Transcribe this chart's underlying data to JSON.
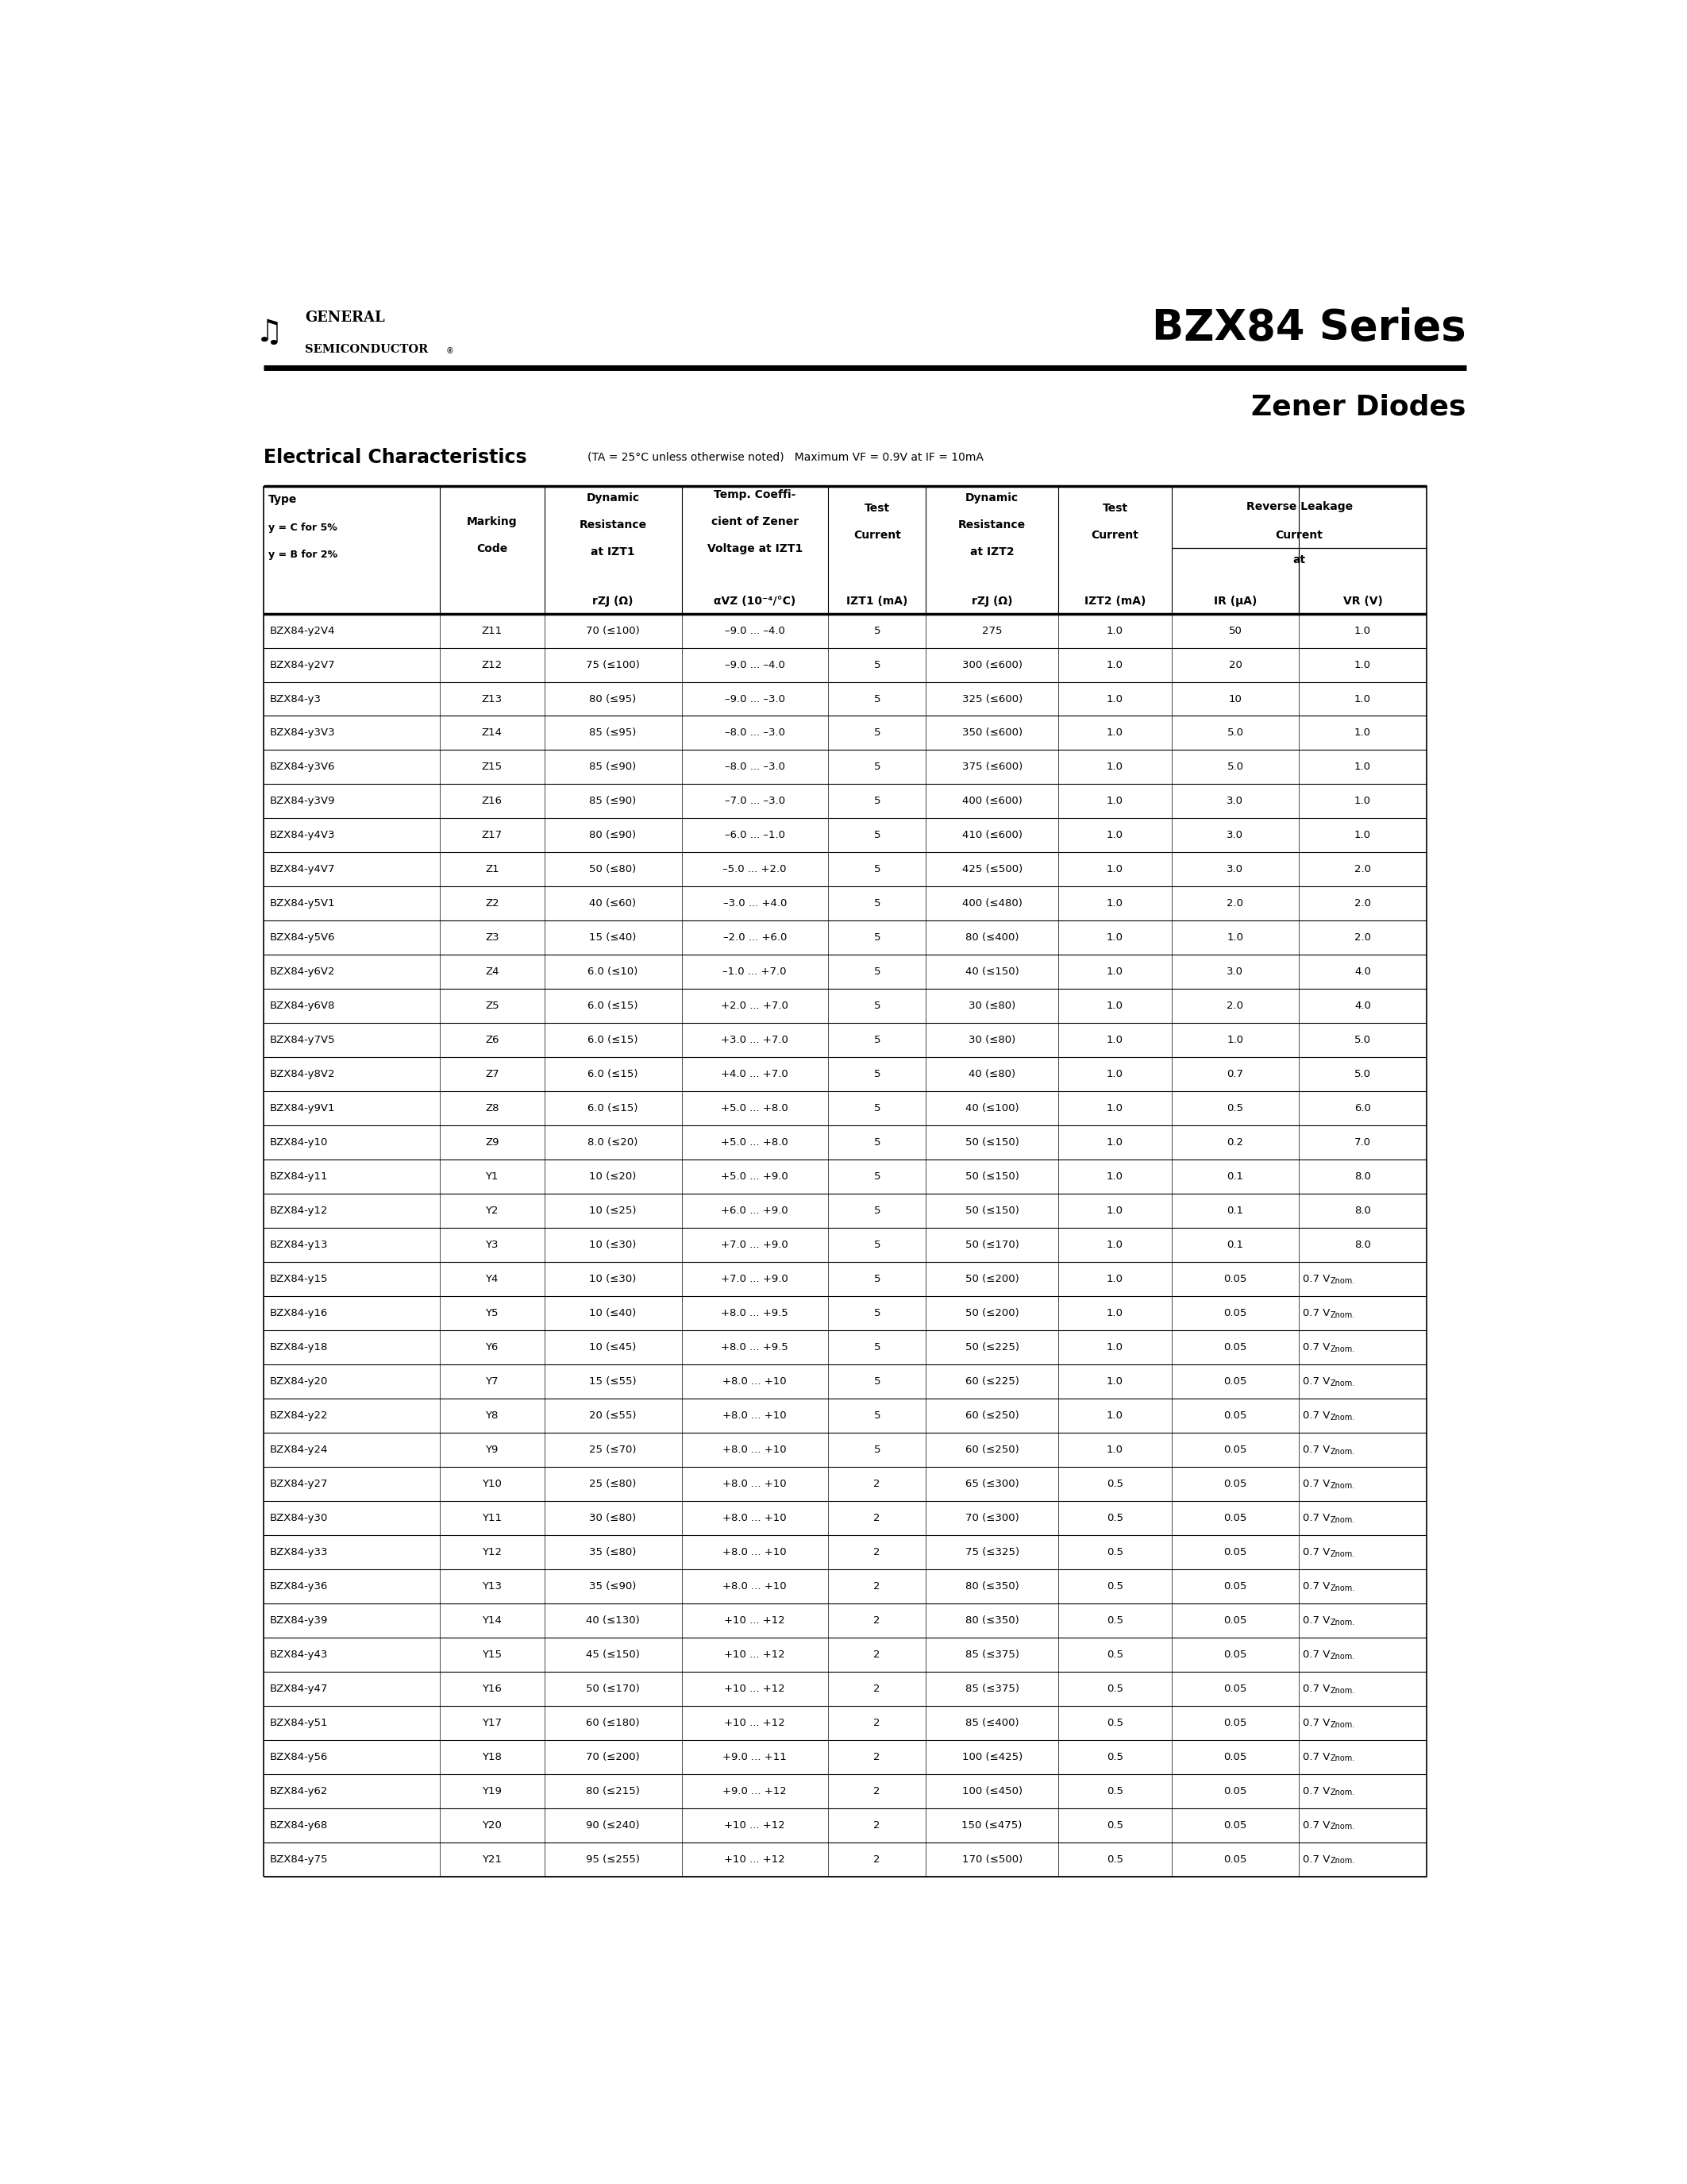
{
  "title1": "BZX84 Series",
  "title2": "Zener Diodes",
  "section_title": "Electrical Characteristics",
  "section_note": "(TA = 25°C unless otherwise noted)   Maximum VF = 0.9V at IF = 10mA",
  "rows": [
    [
      "BZX84-y2V4",
      "Z11",
      "70 (≤100)",
      "–9.0 ... –4.0",
      "5",
      "275",
      "1.0",
      "50",
      "1.0"
    ],
    [
      "BZX84-y2V7",
      "Z12",
      "75 (≤100)",
      "–9.0 ... –4.0",
      "5",
      "300 (≤600)",
      "1.0",
      "20",
      "1.0"
    ],
    [
      "BZX84-y3",
      "Z13",
      "80 (≤95)",
      "–9.0 ... –3.0",
      "5",
      "325 (≤600)",
      "1.0",
      "10",
      "1.0"
    ],
    [
      "BZX84-y3V3",
      "Z14",
      "85 (≤95)",
      "–8.0 ... –3.0",
      "5",
      "350 (≤600)",
      "1.0",
      "5.0",
      "1.0"
    ],
    [
      "BZX84-y3V6",
      "Z15",
      "85 (≤90)",
      "–8.0 ... –3.0",
      "5",
      "375 (≤600)",
      "1.0",
      "5.0",
      "1.0"
    ],
    [
      "BZX84-y3V9",
      "Z16",
      "85 (≤90)",
      "–7.0 ... –3.0",
      "5",
      "400 (≤600)",
      "1.0",
      "3.0",
      "1.0"
    ],
    [
      "BZX84-y4V3",
      "Z17",
      "80 (≤90)",
      "–6.0 ... –1.0",
      "5",
      "410 (≤600)",
      "1.0",
      "3.0",
      "1.0"
    ],
    [
      "BZX84-y4V7",
      "Z1",
      "50 (≤80)",
      "–5.0 ... +2.0",
      "5",
      "425 (≤500)",
      "1.0",
      "3.0",
      "2.0"
    ],
    [
      "BZX84-y5V1",
      "Z2",
      "40 (≤60)",
      "–3.0 ... +4.0",
      "5",
      "400 (≤480)",
      "1.0",
      "2.0",
      "2.0"
    ],
    [
      "BZX84-y5V6",
      "Z3",
      "15 (≤40)",
      "–2.0 ... +6.0",
      "5",
      "80 (≤400)",
      "1.0",
      "1.0",
      "2.0"
    ],
    [
      "BZX84-y6V2",
      "Z4",
      "6.0 (≤10)",
      "–1.0 ... +7.0",
      "5",
      "40 (≤150)",
      "1.0",
      "3.0",
      "4.0"
    ],
    [
      "BZX84-y6V8",
      "Z5",
      "6.0 (≤15)",
      "+2.0 ... +7.0",
      "5",
      "30 (≤80)",
      "1.0",
      "2.0",
      "4.0"
    ],
    [
      "BZX84-y7V5",
      "Z6",
      "6.0 (≤15)",
      "+3.0 ... +7.0",
      "5",
      "30 (≤80)",
      "1.0",
      "1.0",
      "5.0"
    ],
    [
      "BZX84-y8V2",
      "Z7",
      "6.0 (≤15)",
      "+4.0 ... +7.0",
      "5",
      "40 (≤80)",
      "1.0",
      "0.7",
      "5.0"
    ],
    [
      "BZX84-y9V1",
      "Z8",
      "6.0 (≤15)",
      "+5.0 ... +8.0",
      "5",
      "40 (≤100)",
      "1.0",
      "0.5",
      "6.0"
    ],
    [
      "BZX84-y10",
      "Z9",
      "8.0 (≤20)",
      "+5.0 ... +8.0",
      "5",
      "50 (≤150)",
      "1.0",
      "0.2",
      "7.0"
    ],
    [
      "BZX84-y11",
      "Y1",
      "10 (≤20)",
      "+5.0 ... +9.0",
      "5",
      "50 (≤150)",
      "1.0",
      "0.1",
      "8.0"
    ],
    [
      "BZX84-y12",
      "Y2",
      "10 (≤25)",
      "+6.0 ... +9.0",
      "5",
      "50 (≤150)",
      "1.0",
      "0.1",
      "8.0"
    ],
    [
      "BZX84-y13",
      "Y3",
      "10 (≤30)",
      "+7.0 ... +9.0",
      "5",
      "50 (≤170)",
      "1.0",
      "0.1",
      "8.0"
    ],
    [
      "BZX84-y15",
      "Y4",
      "10 (≤30)",
      "+7.0 ... +9.0",
      "5",
      "50 (≤200)",
      "1.0",
      "0.05",
      "0.7 VZnom."
    ],
    [
      "BZX84-y16",
      "Y5",
      "10 (≤40)",
      "+8.0 ... +9.5",
      "5",
      "50 (≤200)",
      "1.0",
      "0.05",
      "0.7 VZnom."
    ],
    [
      "BZX84-y18",
      "Y6",
      "10 (≤45)",
      "+8.0 ... +9.5",
      "5",
      "50 (≤225)",
      "1.0",
      "0.05",
      "0.7 VZnom."
    ],
    [
      "BZX84-y20",
      "Y7",
      "15 (≤55)",
      "+8.0 ... +10",
      "5",
      "60 (≤225)",
      "1.0",
      "0.05",
      "0.7 VZnom."
    ],
    [
      "BZX84-y22",
      "Y8",
      "20 (≤55)",
      "+8.0 ... +10",
      "5",
      "60 (≤250)",
      "1.0",
      "0.05",
      "0.7 VZnom."
    ],
    [
      "BZX84-y24",
      "Y9",
      "25 (≤70)",
      "+8.0 ... +10",
      "5",
      "60 (≤250)",
      "1.0",
      "0.05",
      "0.7 VZnom."
    ],
    [
      "BZX84-y27",
      "Y10",
      "25 (≤80)",
      "+8.0 ... +10",
      "2",
      "65 (≤300)",
      "0.5",
      "0.05",
      "0.7 VZnom."
    ],
    [
      "BZX84-y30",
      "Y11",
      "30 (≤80)",
      "+8.0 ... +10",
      "2",
      "70 (≤300)",
      "0.5",
      "0.05",
      "0.7 VZnom."
    ],
    [
      "BZX84-y33",
      "Y12",
      "35 (≤80)",
      "+8.0 ... +10",
      "2",
      "75 (≤325)",
      "0.5",
      "0.05",
      "0.7 VZnom."
    ],
    [
      "BZX84-y36",
      "Y13",
      "35 (≤90)",
      "+8.0 ... +10",
      "2",
      "80 (≤350)",
      "0.5",
      "0.05",
      "0.7 VZnom."
    ],
    [
      "BZX84-y39",
      "Y14",
      "40 (≤130)",
      "+10 ... +12",
      "2",
      "80 (≤350)",
      "0.5",
      "0.05",
      "0.7 VZnom."
    ],
    [
      "BZX84-y43",
      "Y15",
      "45 (≤150)",
      "+10 ... +12",
      "2",
      "85 (≤375)",
      "0.5",
      "0.05",
      "0.7 VZnom."
    ],
    [
      "BZX84-y47",
      "Y16",
      "50 (≤170)",
      "+10 ... +12",
      "2",
      "85 (≤375)",
      "0.5",
      "0.05",
      "0.7 VZnom."
    ],
    [
      "BZX84-y51",
      "Y17",
      "60 (≤180)",
      "+10 ... +12",
      "2",
      "85 (≤400)",
      "0.5",
      "0.05",
      "0.7 VZnom."
    ],
    [
      "BZX84-y56",
      "Y18",
      "70 (≤200)",
      "+9.0 ... +11",
      "2",
      "100 (≤425)",
      "0.5",
      "0.05",
      "0.7 VZnom."
    ],
    [
      "BZX84-y62",
      "Y19",
      "80 (≤215)",
      "+9.0 ... +12",
      "2",
      "100 (≤450)",
      "0.5",
      "0.05",
      "0.7 VZnom."
    ],
    [
      "BZX84-y68",
      "Y20",
      "90 (≤240)",
      "+10 ... +12",
      "2",
      "150 (≤475)",
      "0.5",
      "0.05",
      "0.7 VZnom."
    ],
    [
      "BZX84-y75",
      "Y21",
      "95 (≤255)",
      "+10 ... +12",
      "2",
      "170 (≤500)",
      "0.5",
      "0.05",
      "0.7 VZnom."
    ]
  ],
  "bg_color": "#ffffff",
  "text_color": "#000000",
  "font_size_table": 9.5,
  "font_size_header": 10
}
